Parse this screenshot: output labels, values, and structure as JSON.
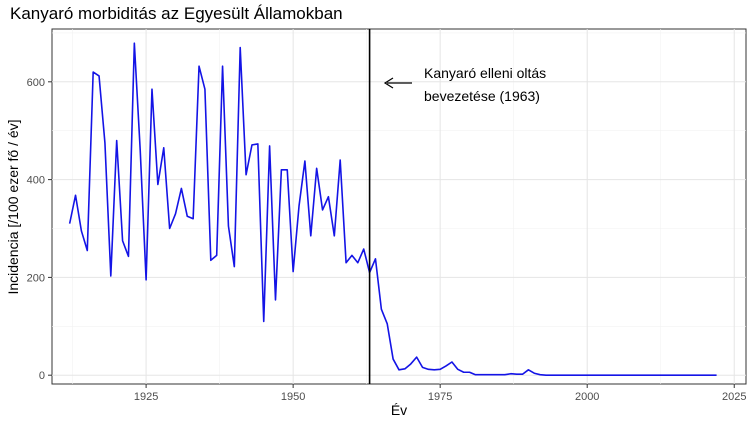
{
  "chart_data": {
    "type": "line",
    "title": "Kanyaró morbiditás az Egyesült Államokban",
    "xlabel": "Év",
    "ylabel": "Incidencia [/100 ezer fő / év]",
    "xlim": [
      1909,
      2027
    ],
    "ylim": [
      -18,
      708
    ],
    "xticks": [
      1925,
      1950,
      1975,
      2000,
      2025
    ],
    "yticks": [
      0,
      200,
      400,
      600
    ],
    "grid": true,
    "series": [
      {
        "color": "#1414e6",
        "x": [
          1912,
          1913,
          1914,
          1915,
          1916,
          1917,
          1918,
          1919,
          1920,
          1921,
          1922,
          1923,
          1924,
          1925,
          1926,
          1927,
          1928,
          1929,
          1930,
          1931,
          1932,
          1933,
          1934,
          1935,
          1936,
          1937,
          1938,
          1939,
          1940,
          1941,
          1942,
          1943,
          1944,
          1945,
          1946,
          1947,
          1948,
          1949,
          1950,
          1951,
          1952,
          1953,
          1954,
          1955,
          1956,
          1957,
          1958,
          1959,
          1960,
          1961,
          1962,
          1963,
          1964,
          1965,
          1966,
          1967,
          1968,
          1969,
          1970,
          1971,
          1972,
          1973,
          1974,
          1975,
          1976,
          1977,
          1978,
          1979,
          1980,
          1981,
          1982,
          1983,
          1984,
          1985,
          1986,
          1987,
          1988,
          1989,
          1990,
          1991,
          1992,
          1993,
          1994,
          1995,
          1996,
          1997,
          1998,
          1999,
          2000,
          2001,
          2002,
          2003,
          2004,
          2005,
          2006,
          2007,
          2008,
          2009,
          2010,
          2011,
          2012,
          2013,
          2014,
          2015,
          2016,
          2017,
          2018,
          2019,
          2020,
          2021,
          2022
        ],
        "y": [
          310,
          368,
          295,
          255,
          620,
          612,
          475,
          203,
          480,
          275,
          243,
          679,
          460,
          195,
          585,
          390,
          465,
          300,
          330,
          382,
          325,
          320,
          632,
          585,
          235,
          245,
          632,
          305,
          222,
          670,
          410,
          471,
          473,
          110,
          469,
          154,
          420,
          420,
          212,
          346,
          438,
          285,
          423,
          338,
          365,
          285,
          440,
          230,
          245,
          230,
          258,
          210,
          238,
          135,
          105,
          33,
          11,
          13,
          23,
          37,
          16,
          12,
          11,
          12,
          19,
          27,
          12,
          6,
          6,
          1,
          1,
          1,
          1,
          1,
          1,
          3,
          2,
          2,
          11,
          4,
          1,
          0,
          0,
          0,
          0,
          0,
          0,
          0,
          0,
          0,
          0,
          0,
          0,
          0,
          0,
          0,
          0,
          0,
          0,
          0,
          0,
          0,
          0,
          0,
          0,
          0,
          0,
          0,
          0,
          0,
          0
        ]
      }
    ],
    "vline": {
      "x": 1963
    },
    "annotation": {
      "line1": "Kanyaró elleni oltás",
      "line2": "bevezetése (1963)"
    }
  }
}
